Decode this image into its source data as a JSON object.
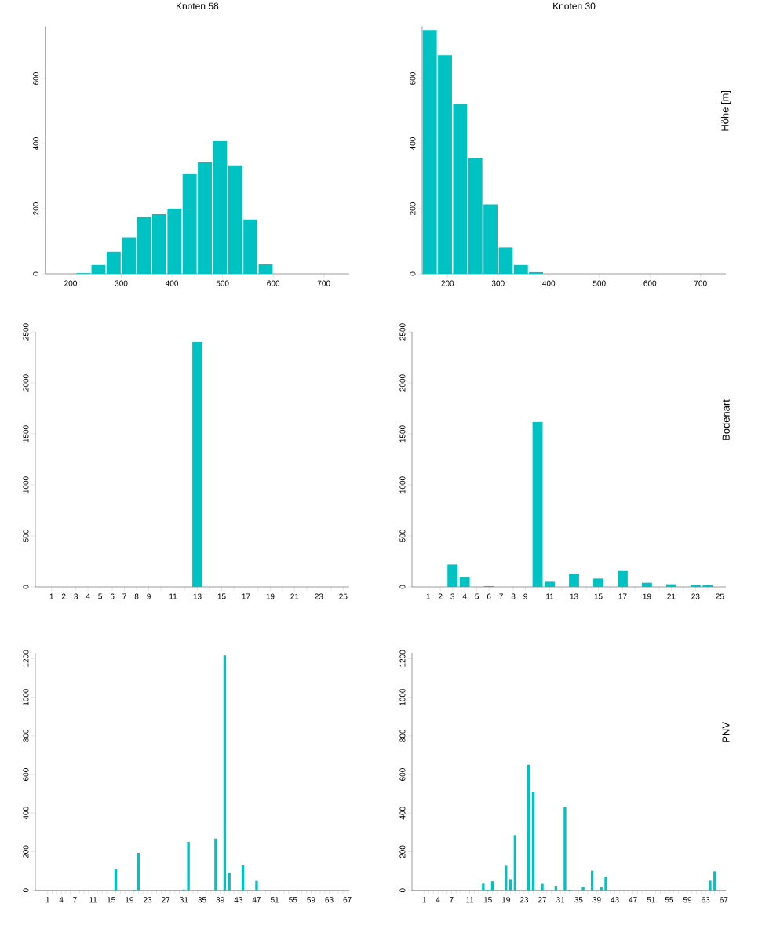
{
  "chart_data": [
    {
      "type": "histogram",
      "title": "Knoten 58",
      "color": "#00c2c2",
      "bins": [
        150,
        180,
        210,
        240,
        270,
        300,
        330,
        360,
        390,
        420,
        450,
        480,
        510,
        540,
        570,
        600,
        630,
        660,
        690,
        720,
        750
      ],
      "values": [
        0,
        0,
        2,
        27,
        68,
        112,
        174,
        183,
        200,
        306,
        342,
        407,
        333,
        167,
        29,
        0,
        0,
        0,
        0,
        0
      ],
      "xlim": [
        150,
        750
      ],
      "xticks": [
        200,
        300,
        400,
        500,
        600,
        700
      ],
      "ylim": [
        0,
        760
      ],
      "yticks": [
        0,
        200,
        400,
        600
      ]
    },
    {
      "type": "histogram",
      "title": "Knoten 30",
      "y2label": "Höhe [m]",
      "color": "#00c2c2",
      "bins": [
        150,
        180,
        210,
        240,
        270,
        300,
        330,
        360,
        390,
        420,
        450,
        480,
        510,
        540,
        570,
        600,
        630,
        660,
        690,
        720,
        750
      ],
      "values": [
        749,
        672,
        522,
        356,
        213,
        81,
        27,
        5,
        null,
        0,
        0,
        0,
        0,
        0,
        0,
        0,
        0,
        0,
        0,
        0
      ],
      "xlim": [
        150,
        750
      ],
      "xticks": [
        200,
        300,
        400,
        500,
        600,
        700
      ],
      "ylim": [
        0,
        760
      ],
      "yticks": [
        0,
        200,
        400,
        600
      ]
    },
    {
      "type": "bar",
      "color": "#00c2c2",
      "categories": [
        "1",
        "2",
        "3",
        "4",
        "5",
        "6",
        "7",
        "8",
        "9",
        null,
        "11",
        null,
        "13",
        null,
        "15",
        null,
        "17",
        null,
        "19",
        null,
        "21",
        null,
        "23",
        null,
        "25"
      ],
      "values": [
        0,
        0,
        0,
        0,
        0,
        0,
        0,
        0,
        0,
        0,
        0,
        0,
        2400,
        0,
        0,
        0,
        0,
        0,
        0,
        0,
        0,
        0,
        0,
        0,
        0
      ],
      "ylim": [
        0,
        2500
      ],
      "yticks": [
        0,
        500,
        1000,
        1500,
        2000,
        2500
      ]
    },
    {
      "type": "bar",
      "y2label": "Bodenart",
      "color": "#00c2c2",
      "categories": [
        "1",
        "2",
        "3",
        "4",
        "5",
        "6",
        "7",
        "8",
        "9",
        null,
        "11",
        null,
        "13",
        null,
        "15",
        null,
        "17",
        null,
        "19",
        null,
        "21",
        null,
        "23",
        null,
        "25"
      ],
      "values": [
        0,
        0,
        220,
        92,
        0,
        8,
        0,
        0,
        0,
        1615,
        51,
        0,
        131,
        0,
        82,
        0,
        156,
        0,
        41,
        0,
        26,
        0,
        18,
        17,
        0
      ],
      "ylim": [
        0,
        2500
      ],
      "yticks": [
        0,
        500,
        1000,
        1500,
        2000,
        2500
      ]
    },
    {
      "type": "bar",
      "color": "#00c2c2",
      "categories": [
        "1",
        null,
        null,
        "4",
        null,
        null,
        "7",
        null,
        null,
        null,
        "11",
        null,
        null,
        null,
        "15",
        null,
        null,
        null,
        "19",
        null,
        null,
        null,
        "23",
        null,
        null,
        null,
        "27",
        null,
        null,
        null,
        "31",
        null,
        null,
        null,
        "35",
        null,
        null,
        null,
        "39",
        null,
        null,
        null,
        "43",
        null,
        null,
        null,
        "47",
        null,
        null,
        null,
        "51",
        null,
        null,
        null,
        "55",
        null,
        null,
        null,
        "59",
        null,
        null,
        null,
        "63",
        null,
        null,
        null,
        "67"
      ],
      "values": [
        0,
        0,
        0,
        0,
        0,
        0,
        0,
        0,
        0,
        0,
        0,
        0,
        0,
        0,
        0,
        110,
        0,
        0,
        0,
        3,
        194,
        0,
        0,
        0,
        0,
        0,
        0,
        0,
        0,
        0,
        4,
        251,
        0,
        0,
        0,
        0,
        0,
        268,
        0,
        1217,
        92,
        0,
        0,
        129,
        0,
        0,
        49,
        0,
        0,
        0,
        0,
        0,
        0,
        0,
        0,
        0,
        0,
        0,
        0,
        0,
        0,
        0,
        0,
        0,
        0,
        0,
        0
      ],
      "ylim": [
        0,
        1230
      ],
      "yticks": [
        0,
        200,
        400,
        600,
        800,
        1000,
        1200
      ]
    },
    {
      "type": "bar",
      "y2label": "PNV",
      "color": "#00c2c2",
      "categories": [
        "1",
        null,
        null,
        "4",
        null,
        null,
        "7",
        null,
        null,
        null,
        "11",
        null,
        null,
        null,
        "15",
        null,
        null,
        null,
        "19",
        null,
        null,
        null,
        "23",
        null,
        null,
        null,
        "27",
        null,
        null,
        null,
        "31",
        null,
        null,
        null,
        "35",
        null,
        null,
        null,
        "39",
        null,
        null,
        null,
        "43",
        null,
        null,
        null,
        "47",
        null,
        null,
        null,
        "51",
        null,
        null,
        null,
        "55",
        null,
        null,
        null,
        "59",
        null,
        null,
        null,
        "63",
        null,
        null,
        null,
        "67"
      ],
      "values": [
        0,
        0,
        0,
        0,
        0,
        0,
        0,
        0,
        0,
        0,
        0,
        0,
        0,
        34,
        3,
        47,
        0,
        0,
        127,
        58,
        286,
        0,
        0,
        650,
        507,
        0,
        33,
        0,
        0,
        23,
        0,
        431,
        3,
        0,
        0,
        18,
        0,
        102,
        0,
        16,
        68,
        0,
        0,
        0,
        0,
        0,
        0,
        0,
        0,
        0,
        0,
        0,
        0,
        0,
        0,
        0,
        0,
        0,
        0,
        0,
        0,
        0,
        0,
        50,
        99,
        0,
        0
      ],
      "ylim": [
        0,
        1230
      ],
      "yticks": [
        0,
        200,
        400,
        600,
        800,
        1000,
        1200
      ]
    }
  ]
}
